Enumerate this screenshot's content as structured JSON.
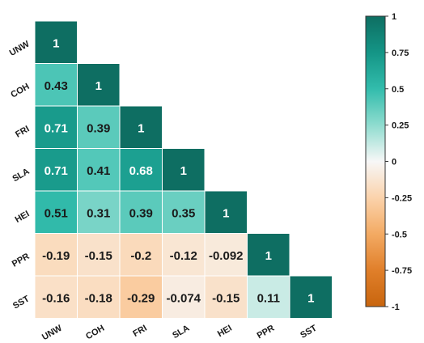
{
  "chart_data": {
    "type": "heatmap",
    "variables": [
      "UNW",
      "COH",
      "FRI",
      "SLA",
      "HEI",
      "PPR",
      "SST"
    ],
    "matrix": [
      [
        1
      ],
      [
        0.43,
        1
      ],
      [
        0.71,
        0.39,
        1
      ],
      [
        0.71,
        0.41,
        0.68,
        1
      ],
      [
        0.51,
        0.31,
        0.39,
        0.35,
        1
      ],
      [
        -0.19,
        -0.15,
        -0.2,
        -0.12,
        -0.092,
        1
      ],
      [
        -0.16,
        -0.18,
        -0.29,
        -0.074,
        -0.15,
        0.11,
        1
      ]
    ],
    "colorbar": {
      "range": [
        -1,
        1
      ],
      "ticks": [
        "1",
        "0.75",
        "0.5",
        "0.25",
        "0",
        "-0.25",
        "-0.5",
        "-0.75",
        "-1"
      ],
      "colors": {
        "negative": "#c8650e",
        "zero": "#f7f7f7",
        "positive": "#0e6e62"
      }
    },
    "layout": "lower-triangle"
  }
}
